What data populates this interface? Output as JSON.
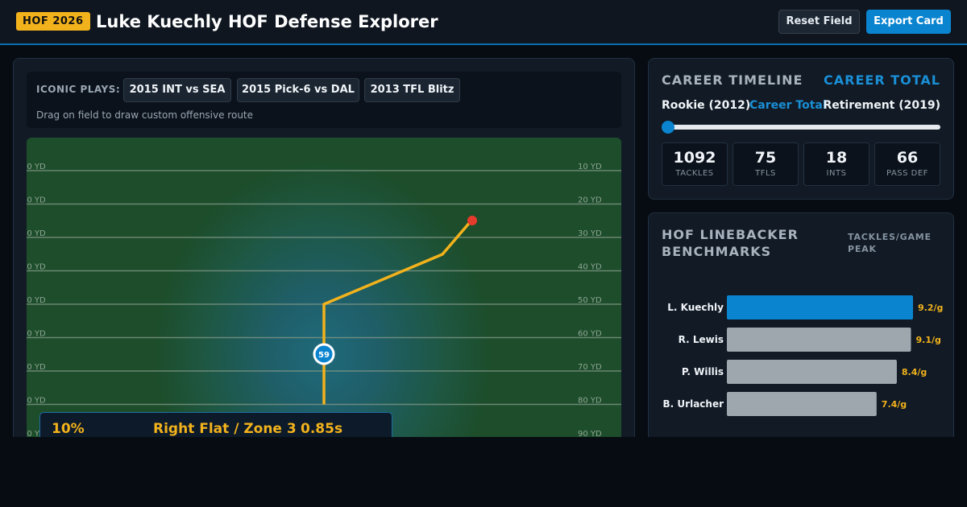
{
  "header": {
    "badge": "HOF 2026",
    "title": "Luke Kuechly HOF Defense Explorer",
    "reset_label": "Reset Field",
    "export_label": "Export Card"
  },
  "plays": {
    "label": "ICONIC PLAYS:",
    "items": [
      "2015 INT vs SEA",
      "2015 Pick-6 vs DAL",
      "2013 TFL Blitz"
    ],
    "hint": "Drag on field to draw custom offensive route"
  },
  "field": {
    "yard_labels": [
      "10 YD",
      "20 YD",
      "30 YD",
      "40 YD",
      "50 YD",
      "60 YD",
      "70 YD",
      "80 YD",
      "90 YD"
    ],
    "player_number": "59",
    "route_color": "#f2b21c",
    "target_color": "#e53b2c"
  },
  "info": {
    "probability": "10%",
    "zone": "Right Flat / Zone 3",
    "time": "0.85s"
  },
  "timeline": {
    "title": "CAREER TIMELINE",
    "header_total": "CAREER TOTAL",
    "range_start": "Rookie (2012)",
    "range_mid": "Career Total",
    "range_end": "Retirement (2019)",
    "slider_value": 0,
    "stats": [
      {
        "value": "1092",
        "label": "TACKLES"
      },
      {
        "value": "75",
        "label": "TFLS"
      },
      {
        "value": "18",
        "label": "INTS"
      },
      {
        "value": "66",
        "label": "PASS DEF"
      }
    ]
  },
  "benchmarks": {
    "title": "HOF LINEBACKER BENCHMARKS",
    "subtitle": "TACKLES/GAME PEAK",
    "chart_data": {
      "type": "bar",
      "orientation": "horizontal",
      "categories": [
        "L. Kuechly",
        "R. Lewis",
        "P. Willis",
        "B. Urlacher"
      ],
      "values": [
        9.2,
        9.1,
        8.4,
        7.4
      ],
      "value_labels": [
        "9.2/g",
        "9.1/g",
        "8.4/g",
        "7.4/g"
      ],
      "xlim": [
        0,
        9.2
      ],
      "highlight_color": "#0b84cf",
      "default_color": "#9fa7ae",
      "label_color": "#f2b21c"
    }
  }
}
